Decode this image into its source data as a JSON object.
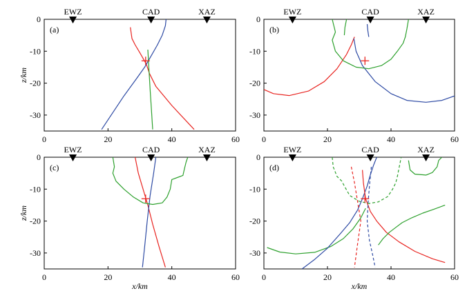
{
  "chart_data": [
    {
      "type": "line",
      "panel_label": "(a)",
      "xlim": [
        0,
        60
      ],
      "ylim": [
        -35,
        0
      ],
      "xticks": [
        0,
        20,
        40,
        60
      ],
      "yticks": [
        0,
        -10,
        -20,
        -30
      ],
      "xlabel": "",
      "ylabel": "z/km",
      "stations": [
        {
          "name": "EWZ",
          "x": 9
        },
        {
          "name": "CAD",
          "x": 33.5
        },
        {
          "name": "XAZ",
          "x": 51
        }
      ],
      "source_marker": {
        "x": 31.8,
        "y": -13
      },
      "series": [
        {
          "color": "#e8231f",
          "style": "solid",
          "x": [
            27,
            27.5,
            28.5,
            30,
            32,
            33,
            35,
            40,
            47
          ],
          "y": [
            -2.5,
            -6,
            -8,
            -10.5,
            -14,
            -17,
            -21,
            -27,
            -34.5
          ]
        },
        {
          "color": "#2c49a3",
          "style": "solid",
          "x": [
            38.2,
            38,
            37,
            35.5,
            33.5,
            31.5,
            29,
            25,
            18
          ],
          "y": [
            0,
            -2,
            -5,
            -8,
            -11.5,
            -15,
            -18.5,
            -24,
            -34.5
          ]
        },
        {
          "color": "#2ca02c",
          "style": "solid",
          "x": [
            32.5,
            32.8,
            33.2,
            33.6,
            34
          ],
          "y": [
            -9.5,
            -15,
            -22,
            -28,
            -34.5
          ]
        }
      ]
    },
    {
      "type": "line",
      "panel_label": "(b)",
      "xlim": [
        0,
        60
      ],
      "ylim": [
        -35,
        0
      ],
      "xticks": [
        0,
        20,
        40,
        60
      ],
      "yticks": [
        0,
        -10,
        -20,
        -30
      ],
      "xlabel": "",
      "ylabel": "",
      "stations": [
        {
          "name": "EWZ",
          "x": 9
        },
        {
          "name": "CAD",
          "x": 33.5
        },
        {
          "name": "XAZ",
          "x": 51
        }
      ],
      "source_marker": {
        "x": 31.8,
        "y": -13
      },
      "series": [
        {
          "color": "#e8231f",
          "style": "solid",
          "x": [
            0,
            3,
            8,
            14,
            19,
            23,
            26,
            27.5,
            28.5
          ],
          "y": [
            -22,
            -23.3,
            -23.9,
            -22.5,
            -19.5,
            -15.5,
            -11,
            -8,
            -5.5
          ]
        },
        {
          "color": "#2c49a3",
          "style": "solid",
          "x": [
            28.3,
            29,
            31,
            35,
            40,
            45,
            51,
            56,
            60
          ],
          "y": [
            -6,
            -10,
            -14.5,
            -19.5,
            -23.3,
            -25.4,
            -26,
            -25.4,
            -24
          ]
        },
        {
          "color": "#2c49a3",
          "style": "solid",
          "x": [
            32.5,
            32.7,
            33
          ],
          "y": [
            -1.5,
            -3.5,
            -5.5
          ]
        },
        {
          "color": "#2ca02c",
          "style": "solid",
          "x": [
            21.5,
            22.5,
            21.5,
            22.5,
            25,
            29,
            33,
            37,
            40,
            42,
            43.8,
            44.5,
            45,
            45.5
          ],
          "y": [
            0,
            -4,
            -6.5,
            -10,
            -13,
            -15,
            -15.5,
            -14.5,
            -12.5,
            -10,
            -7.5,
            -5.5,
            -3,
            0
          ]
        },
        {
          "color": "#2ca02c",
          "style": "solid",
          "x": [
            26,
            25.5,
            25.3
          ],
          "y": [
            0,
            -2.5,
            -5
          ]
        }
      ]
    },
    {
      "type": "line",
      "panel_label": "(c)",
      "xlim": [
        0,
        60
      ],
      "ylim": [
        -35,
        0
      ],
      "xticks": [
        0,
        20,
        40,
        60
      ],
      "yticks": [
        0,
        -10,
        -20,
        -30
      ],
      "xlabel": "x/km",
      "ylabel": "z/km",
      "stations": [
        {
          "name": "EWZ",
          "x": 9
        },
        {
          "name": "CAD",
          "x": 33.5
        },
        {
          "name": "XAZ",
          "x": 51
        }
      ],
      "source_marker": {
        "x": 31.8,
        "y": -13
      },
      "series": [
        {
          "color": "#e8231f",
          "style": "solid",
          "x": [
            28.5,
            29.5,
            31,
            32.5,
            34,
            36,
            38
          ],
          "y": [
            0,
            -5,
            -10,
            -15,
            -21,
            -28,
            -34.5
          ]
        },
        {
          "color": "#2c49a3",
          "style": "solid",
          "x": [
            35,
            34.3,
            33.2,
            32.3,
            31.5,
            30.8
          ],
          "y": [
            0,
            -5,
            -12,
            -20,
            -28,
            -34.5
          ]
        },
        {
          "color": "#2ca02c",
          "style": "solid",
          "x": [
            21.5,
            22,
            21.5,
            22.5,
            25,
            28,
            31,
            34,
            37,
            38.5,
            39.5,
            40,
            43.5,
            44,
            44.5,
            45
          ],
          "y": [
            0,
            -3,
            -5,
            -7.5,
            -10,
            -12.5,
            -14.3,
            -14.8,
            -14.3,
            -12.5,
            -10,
            -7,
            -5.7,
            -3.5,
            -1.5,
            0
          ]
        }
      ]
    },
    {
      "type": "line",
      "panel_label": "(d)",
      "xlim": [
        0,
        60
      ],
      "ylim": [
        -35,
        0
      ],
      "xticks": [
        0,
        20,
        40,
        60
      ],
      "yticks": [
        0,
        -10,
        -20,
        -30
      ],
      "xlabel": "x/km",
      "ylabel": "",
      "stations": [
        {
          "name": "EWZ",
          "x": 9
        },
        {
          "name": "CAD",
          "x": 33.5
        },
        {
          "name": "XAZ",
          "x": 51
        }
      ],
      "source_marker": {
        "x": 31.8,
        "y": -13
      },
      "series": [
        {
          "color": "#2ca02c",
          "style": "solid",
          "x": [
            1,
            5,
            10,
            16,
            21,
            25,
            28,
            30.5,
            32
          ],
          "y": [
            -28.3,
            -29.7,
            -30.3,
            -29.8,
            -28,
            -25.5,
            -22.5,
            -19,
            -16
          ]
        },
        {
          "color": "#2c49a3",
          "style": "solid",
          "x": [
            12,
            16,
            20,
            24,
            27,
            29.5,
            31,
            32.5,
            33.5,
            34.5,
            35.5
          ],
          "y": [
            -35,
            -32,
            -28.5,
            -24,
            -20.5,
            -16.5,
            -13,
            -9,
            -5.5,
            -2.5,
            0
          ]
        },
        {
          "color": "#e8231f",
          "style": "solid",
          "x": [
            31,
            31.3,
            32,
            33.5,
            35.5,
            38.5,
            42.5,
            47.5,
            53,
            57
          ],
          "y": [
            -4,
            -8,
            -13,
            -17,
            -20,
            -23.5,
            -26.5,
            -29.5,
            -31.8,
            -33
          ]
        },
        {
          "color": "#e8231f",
          "style": "dashed",
          "x": [
            27.5,
            28.5,
            29.5,
            30.5,
            29.5,
            28.5
          ],
          "y": [
            -3,
            -8,
            -14,
            -20,
            -27,
            -34.5
          ]
        },
        {
          "color": "#2c49a3",
          "style": "dashed",
          "x": [
            33.8,
            33.3,
            32.8,
            32.5,
            33.2,
            34.3,
            35
          ],
          "y": [
            -3,
            -8,
            -14,
            -20,
            -26,
            -31,
            -34.5
          ]
        },
        {
          "color": "#2ca02c",
          "style": "dashed",
          "x": [
            21.5,
            21.8,
            23,
            24.5,
            25.3,
            27,
            30,
            33,
            36,
            39,
            40.5,
            41.5,
            42,
            43.2
          ],
          "y": [
            0,
            -3,
            -6,
            -7.5,
            -9,
            -12,
            -13.8,
            -14.5,
            -14,
            -12.3,
            -10,
            -8,
            -6,
            0
          ]
        },
        {
          "color": "#2ca02c",
          "style": "solid",
          "x": [
            45.5,
            46,
            47.5,
            51,
            53,
            54.5,
            55,
            56
          ],
          "y": [
            -1,
            -4,
            -5.3,
            -5.6,
            -4.8,
            -3,
            -1,
            0
          ]
        },
        {
          "color": "#2ca02c",
          "style": "solid",
          "x": [
            36,
            37.5,
            39.5,
            41.5,
            43.5,
            46.5,
            50,
            53.5,
            57
          ],
          "y": [
            -27.5,
            -25.5,
            -23.5,
            -22,
            -20.5,
            -19,
            -17.5,
            -16.3,
            -15
          ]
        }
      ]
    }
  ]
}
